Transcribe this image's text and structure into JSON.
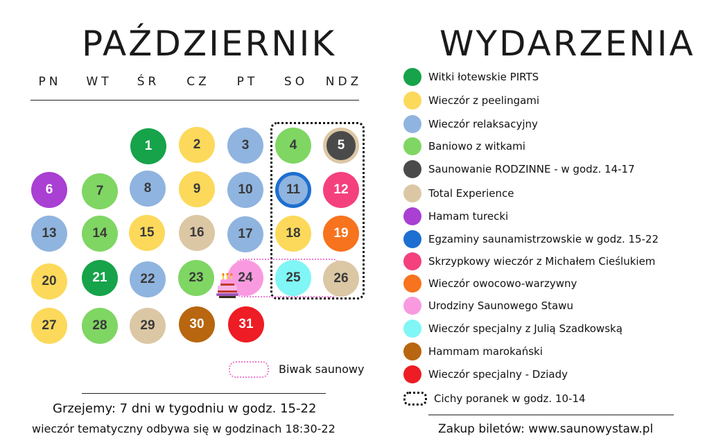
{
  "calendar": {
    "title": "PAŹDZIERNIK",
    "weekdays": [
      "PN",
      "WT",
      "ŚR",
      "CZ",
      "PT",
      "SO",
      "NDZ"
    ],
    "days": [
      {
        "n": "1",
        "color": "#16a34a",
        "text": "white"
      },
      {
        "n": "2",
        "color": "#fcd95a"
      },
      {
        "n": "3",
        "color": "#8fb4df"
      },
      {
        "n": "4",
        "color": "#7fd663"
      },
      {
        "n": "5",
        "color": "#4a4a4a",
        "ring": "#dcc7a5",
        "text": "white"
      },
      {
        "n": "6",
        "color": "#a93fd3",
        "text": "white"
      },
      {
        "n": "7",
        "color": "#7fd663"
      },
      {
        "n": "8",
        "color": "#8fb4df"
      },
      {
        "n": "9",
        "color": "#fcd95a"
      },
      {
        "n": "10",
        "color": "#8fb4df"
      },
      {
        "n": "11",
        "color": "#8fb4df",
        "ring": "#1d6fd1"
      },
      {
        "n": "12",
        "color": "#f5407e",
        "text": "white"
      },
      {
        "n": "13",
        "color": "#8fb4df"
      },
      {
        "n": "14",
        "color": "#7fd663"
      },
      {
        "n": "15",
        "color": "#fcd95a"
      },
      {
        "n": "16",
        "color": "#dcc7a5"
      },
      {
        "n": "17",
        "color": "#8fb4df"
      },
      {
        "n": "18",
        "color": "#fcd95a"
      },
      {
        "n": "19",
        "color": "#f7731e",
        "text": "white"
      },
      {
        "n": "20",
        "color": "#fcd95a"
      },
      {
        "n": "21",
        "color": "#16a34a",
        "text": "white"
      },
      {
        "n": "22",
        "color": "#8fb4df"
      },
      {
        "n": "23",
        "color": "#7fd663"
      },
      {
        "n": "24",
        "color": "#f99ae0"
      },
      {
        "n": "25",
        "color": "#80f6f6"
      },
      {
        "n": "26",
        "color": "#dcc7a5"
      },
      {
        "n": "27",
        "color": "#fcd95a"
      },
      {
        "n": "28",
        "color": "#7fd663"
      },
      {
        "n": "29",
        "color": "#dcc7a5"
      },
      {
        "n": "30",
        "color": "#b8660f",
        "text": "white"
      },
      {
        "n": "31",
        "color": "#ee1c24",
        "text": "white"
      }
    ],
    "biwak_label": "Biwak saunowy"
  },
  "events": {
    "title": "WYDARZENIA",
    "items": [
      {
        "label": "Witki łotewskie PIRTS",
        "color": "#16a34a"
      },
      {
        "label": "Wieczór z peelingami",
        "color": "#fcd95a"
      },
      {
        "label": "Wieczór relaksacyjny",
        "color": "#8fb4df"
      },
      {
        "label": "Baniowo z witkami",
        "color": "#7fd663"
      },
      {
        "label": "Saunowanie RODZINNE - w godz. 14-17",
        "color": "#4a4a4a"
      },
      {
        "label": "Total Experience",
        "color": "#dcc7a5"
      },
      {
        "label": "Hamam turecki",
        "color": "#a93fd3"
      },
      {
        "label": "Egzaminy saunamistrzowskie w godz. 15-22",
        "color": "#1d6fd1"
      },
      {
        "label": "Skrzypkowy wieczór z Michałem Cieślukiem",
        "color": "#f5407e"
      },
      {
        "label": "Wieczór owocowo-warzywny",
        "color": "#f7731e"
      },
      {
        "label": "Urodziny Saunowego Stawu",
        "color": "#f99ae0"
      },
      {
        "label": "Wieczór specjalny z Julią Szadkowską",
        "color": "#80f6f6"
      },
      {
        "label": "Hammam marokański",
        "color": "#b8660f"
      },
      {
        "label": "Wieczór specjalny - Dziady",
        "color": "#ee1c24"
      },
      {
        "label": "Cichy poranek w godz. 10-14",
        "color": "dotted"
      }
    ]
  },
  "footer": {
    "hours": "Grzejemy: 7 dni w tygodniu w godz. 15-22",
    "thematic": "wieczór tematyczny odbywa się w godzinach 18:30-22",
    "tickets": "Zakup biletów: www.saunowystaw.pl"
  }
}
